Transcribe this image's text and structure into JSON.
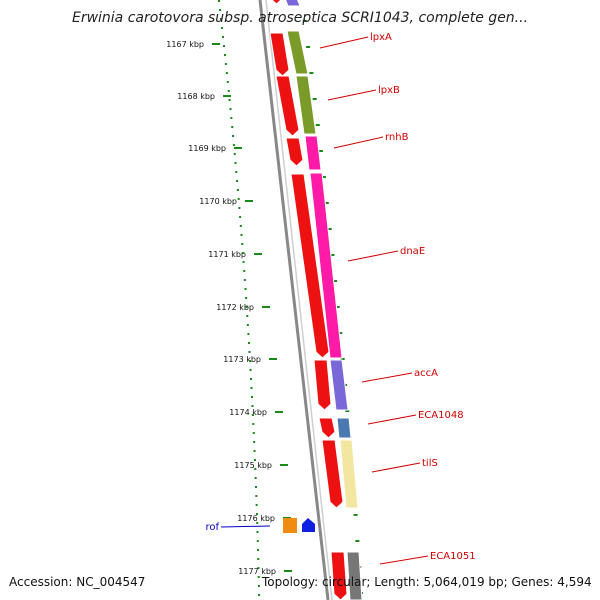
{
  "title": "Erwinia carotovora subsp. atroseptica SCRI1043, complete gen...",
  "footer": {
    "accession": "Accession: NC_004547",
    "summary": "Topology: circular; Length: 5,064,019 bp; Genes: 4,594"
  },
  "ruler": {
    "unit": "kbp",
    "ticks": [
      "1167 kbp",
      "1168 kbp",
      "1169 kbp",
      "1170 kbp",
      "1171 kbp",
      "1172 kbp",
      "1173 kbp",
      "1174 kbp",
      "1175 kbp",
      "1176 kbp",
      "1177 kbp"
    ]
  },
  "genes": [
    {
      "name": "lpxA",
      "color": "#d40000"
    },
    {
      "name": "lpxB",
      "color": "#d40000"
    },
    {
      "name": "rnhB",
      "color": "#d40000"
    },
    {
      "name": "dnaE",
      "color": "#d40000"
    },
    {
      "name": "accA",
      "color": "#d40000"
    },
    {
      "name": "ECA1048",
      "color": "#d40000"
    },
    {
      "name": "tilS",
      "color": "#d40000"
    },
    {
      "name": "rof",
      "color": "#0000cc"
    },
    {
      "name": "ECA1051",
      "color": "#d40000"
    }
  ],
  "colors": {
    "cds_forward": "#ee1111",
    "cog_green": "#7a9a2a",
    "cog_pink": "#ff1aa8",
    "cog_purple": "#7b68d8",
    "cog_steelblue": "#4a78b0",
    "cog_yellow": "#f2e6a0",
    "backbone": "#888888",
    "ruler_dots": "#1a8a1a",
    "rof_orange": "#f08c10",
    "rof_blue": "#1020e0"
  }
}
